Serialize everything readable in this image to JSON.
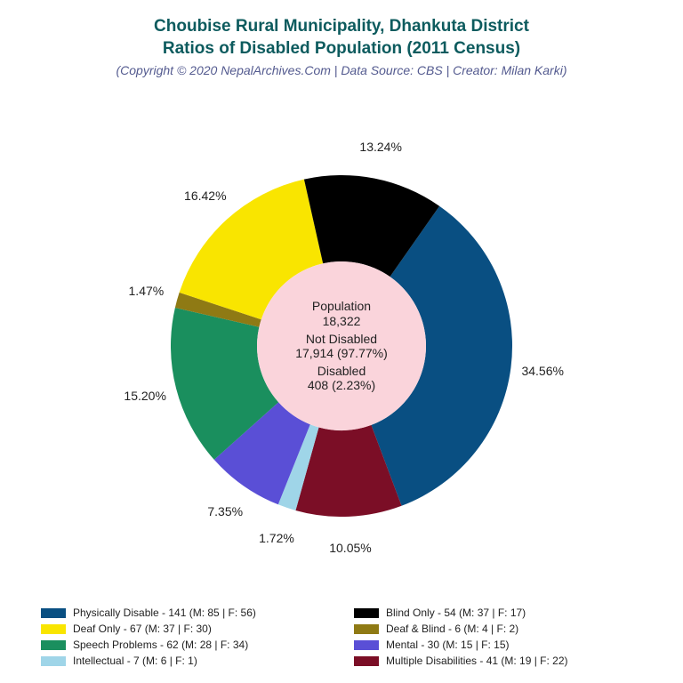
{
  "title_line1": "Choubise Rural Municipality, Dhankuta District",
  "title_line2": "Ratios of Disabled Population (2011 Census)",
  "subtitle": "(Copyright © 2020 NepalArchives.Com | Data Source: CBS | Creator: Milan Karki)",
  "title_color": "#0d5b5e",
  "subtitle_color": "#535a8f",
  "title_fontsize": 19,
  "subtitle_fontsize": 14,
  "chart": {
    "type": "donut",
    "outer_radius": 192,
    "inner_radius": 95,
    "center_bg": "#fad4db",
    "background": "#ffffff",
    "start_angle_deg": -55,
    "label_fontsize": 14,
    "label_color": "#222222",
    "slices": [
      {
        "key": "physical",
        "label": "Physically Disable",
        "count": 141,
        "m": 85,
        "f": 56,
        "pct": 34.56,
        "color": "#094f82"
      },
      {
        "key": "multiple",
        "label": "Multiple Disabilities",
        "count": 41,
        "m": 19,
        "f": 22,
        "pct": 10.05,
        "color": "#7b0e26"
      },
      {
        "key": "intellect",
        "label": "Intellectual",
        "count": 7,
        "m": 6,
        "f": 1,
        "pct": 1.72,
        "color": "#9fd5e8"
      },
      {
        "key": "mental",
        "label": "Mental",
        "count": 30,
        "m": 15,
        "f": 15,
        "pct": 7.35,
        "color": "#5a4fd6"
      },
      {
        "key": "speech",
        "label": "Speech Problems",
        "count": 62,
        "m": 28,
        "f": 34,
        "pct": 15.2,
        "color": "#1a8f5e"
      },
      {
        "key": "deafblind",
        "label": "Deaf & Blind",
        "count": 6,
        "m": 4,
        "f": 2,
        "pct": 1.47,
        "color": "#8f7a14"
      },
      {
        "key": "deaf",
        "label": "Deaf Only",
        "count": 67,
        "m": 37,
        "f": 30,
        "pct": 16.42,
        "color": "#f9e500"
      },
      {
        "key": "blind",
        "label": "Blind Only",
        "count": 54,
        "m": 37,
        "f": 17,
        "pct": 13.24,
        "color": "#000000"
      }
    ],
    "center": {
      "population_label": "Population",
      "population_value": "18,322",
      "notdisabled_label": "Not Disabled",
      "notdisabled_value": "17,914 (97.77%)",
      "disabled_label": "Disabled",
      "disabled_value": "408 (2.23%)"
    }
  },
  "legend": {
    "order": [
      "physical",
      "blind",
      "deaf",
      "deafblind",
      "speech",
      "mental",
      "intellect",
      "multiple"
    ],
    "fontsize": 12,
    "swatch_w": 28,
    "swatch_h": 11
  }
}
